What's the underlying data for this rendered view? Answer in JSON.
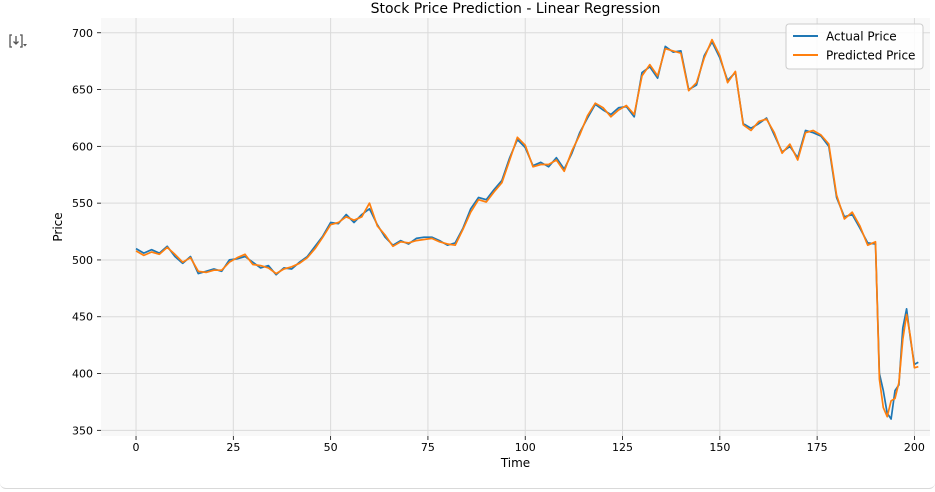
{
  "cell": {
    "output_icon": "output-toggle-icon"
  },
  "chart_data": {
    "type": "line",
    "title": "Stock Price Prediction - Linear Regression",
    "xlabel": "Time",
    "ylabel": "Price",
    "xlim": [
      -9,
      204
    ],
    "ylim": [
      345,
      713
    ],
    "xticks": [
      0,
      25,
      50,
      75,
      100,
      125,
      150,
      175,
      200
    ],
    "yticks": [
      350,
      400,
      450,
      500,
      550,
      600,
      650,
      700
    ],
    "grid": true,
    "legend_position": "top-right",
    "series": [
      {
        "name": "Actual Price",
        "color": "#1f77b4",
        "x": [
          0,
          2,
          4,
          6,
          8,
          10,
          12,
          14,
          16,
          18,
          20,
          22,
          24,
          26,
          28,
          30,
          32,
          34,
          36,
          38,
          40,
          42,
          44,
          46,
          48,
          50,
          52,
          54,
          56,
          58,
          60,
          62,
          64,
          66,
          68,
          70,
          72,
          74,
          76,
          78,
          80,
          82,
          84,
          86,
          88,
          90,
          92,
          94,
          96,
          98,
          100,
          102,
          104,
          106,
          108,
          110,
          112,
          114,
          116,
          118,
          120,
          122,
          124,
          126,
          128,
          130,
          132,
          134,
          136,
          138,
          140,
          142,
          144,
          146,
          148,
          150,
          152,
          154,
          156,
          158,
          160,
          162,
          164,
          166,
          168,
          170,
          172,
          174,
          176,
          178,
          180,
          182,
          184,
          186,
          188,
          190,
          191,
          192,
          193,
          194,
          195,
          196,
          197,
          198,
          199,
          200,
          201
        ],
        "values": [
          510,
          506,
          509,
          506,
          512,
          503,
          497,
          503,
          488,
          490,
          492,
          490,
          500,
          501,
          503,
          498,
          493,
          495,
          487,
          493,
          492,
          498,
          503,
          512,
          521,
          533,
          532,
          540,
          533,
          540,
          545,
          531,
          520,
          513,
          517,
          514,
          519,
          520,
          520,
          517,
          513,
          515,
          528,
          545,
          555,
          553,
          562,
          570,
          590,
          606,
          599,
          583,
          586,
          582,
          590,
          580,
          594,
          612,
          625,
          637,
          632,
          628,
          634,
          635,
          626,
          665,
          670,
          660,
          688,
          683,
          684,
          650,
          654,
          680,
          692,
          678,
          658,
          665,
          620,
          616,
          620,
          625,
          610,
          595,
          600,
          590,
          614,
          612,
          609,
          600,
          555,
          538,
          540,
          528,
          515,
          514,
          400,
          385,
          365,
          360,
          385,
          390,
          440,
          457,
          430,
          408,
          410
        ]
      },
      {
        "name": "Predicted Price",
        "color": "#ff7f0e",
        "x": [
          0,
          2,
          4,
          6,
          8,
          10,
          12,
          14,
          16,
          18,
          20,
          22,
          24,
          26,
          28,
          30,
          32,
          34,
          36,
          38,
          40,
          42,
          44,
          46,
          48,
          50,
          52,
          54,
          56,
          58,
          60,
          62,
          64,
          66,
          68,
          70,
          72,
          74,
          76,
          78,
          80,
          82,
          84,
          86,
          88,
          90,
          92,
          94,
          96,
          98,
          100,
          102,
          104,
          106,
          108,
          110,
          112,
          114,
          116,
          118,
          120,
          122,
          124,
          126,
          128,
          130,
          132,
          134,
          136,
          138,
          140,
          142,
          144,
          146,
          148,
          150,
          152,
          154,
          156,
          158,
          160,
          162,
          164,
          166,
          168,
          170,
          172,
          174,
          176,
          178,
          180,
          182,
          184,
          186,
          188,
          190,
          191,
          192,
          193,
          194,
          195,
          196,
          197,
          198,
          199,
          200,
          201
        ],
        "values": [
          508,
          504,
          507,
          505,
          511,
          505,
          498,
          502,
          490,
          489,
          491,
          491,
          498,
          502,
          505,
          496,
          495,
          493,
          488,
          492,
          494,
          497,
          502,
          510,
          520,
          531,
          533,
          538,
          535,
          538,
          550,
          530,
          522,
          512,
          516,
          515,
          517,
          518,
          519,
          516,
          514,
          513,
          527,
          542,
          553,
          551,
          560,
          568,
          588,
          608,
          601,
          582,
          584,
          584,
          588,
          578,
          596,
          610,
          627,
          638,
          634,
          626,
          632,
          636,
          628,
          662,
          672,
          662,
          686,
          684,
          682,
          649,
          656,
          678,
          694,
          680,
          656,
          666,
          619,
          614,
          622,
          624,
          612,
          594,
          602,
          588,
          612,
          614,
          610,
          602,
          557,
          536,
          542,
          530,
          513,
          516,
          395,
          370,
          362,
          376,
          378,
          392,
          430,
          452,
          432,
          405,
          406
        ]
      }
    ]
  }
}
